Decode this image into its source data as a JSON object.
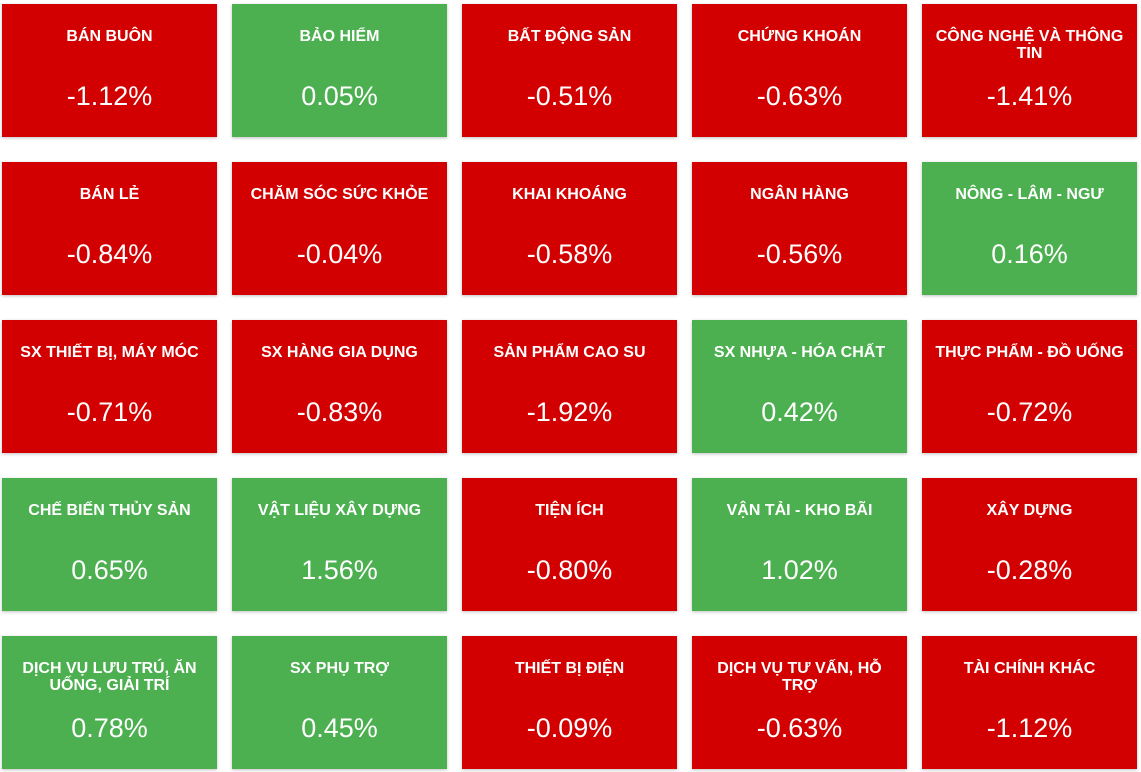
{
  "colors": {
    "down": "#d20000",
    "up": "#4caf50",
    "text": "#ffffff"
  },
  "sectors": [
    {
      "name": "BÁN BUÔN",
      "change": "-1.12%",
      "trend": "down"
    },
    {
      "name": "BẢO HIỂM",
      "change": "0.05%",
      "trend": "up"
    },
    {
      "name": "BẤT ĐỘNG SẢN",
      "change": "-0.51%",
      "trend": "down"
    },
    {
      "name": "CHỨNG KHOÁN",
      "change": "-0.63%",
      "trend": "down"
    },
    {
      "name": "CÔNG NGHỆ VÀ THÔNG TIN",
      "change": "-1.41%",
      "trend": "down"
    },
    {
      "name": "BÁN LẺ",
      "change": "-0.84%",
      "trend": "down"
    },
    {
      "name": "CHĂM SÓC SỨC KHỎE",
      "change": "-0.04%",
      "trend": "down"
    },
    {
      "name": "KHAI KHOÁNG",
      "change": "-0.58%",
      "trend": "down"
    },
    {
      "name": "NGÂN HÀNG",
      "change": "-0.56%",
      "trend": "down"
    },
    {
      "name": "NÔNG - LÂM - NGƯ",
      "change": "0.16%",
      "trend": "up"
    },
    {
      "name": "SX THIẾT BỊ, MÁY MÓC",
      "change": "-0.71%",
      "trend": "down"
    },
    {
      "name": "SX HÀNG GIA DỤNG",
      "change": "-0.83%",
      "trend": "down"
    },
    {
      "name": "SẢN PHẨM CAO SU",
      "change": "-1.92%",
      "trend": "down"
    },
    {
      "name": "SX NHỰA - HÓA CHẤT",
      "change": "0.42%",
      "trend": "up"
    },
    {
      "name": "THỰC PHẨM - ĐỒ UỐNG",
      "change": "-0.72%",
      "trend": "down"
    },
    {
      "name": "CHẾ BIẾN THỦY SẢN",
      "change": "0.65%",
      "trend": "up"
    },
    {
      "name": "VẬT LIỆU XÂY DỰNG",
      "change": "1.56%",
      "trend": "up"
    },
    {
      "name": "TIỆN ÍCH",
      "change": "-0.80%",
      "trend": "down"
    },
    {
      "name": "VẬN TẢI - KHO BÃI",
      "change": "1.02%",
      "trend": "up"
    },
    {
      "name": "XÂY DỰNG",
      "change": "-0.28%",
      "trend": "down"
    },
    {
      "name": "DỊCH VỤ LƯU TRÚ, ĂN UỐNG, GIẢI TRÍ",
      "change": "0.78%",
      "trend": "up"
    },
    {
      "name": "SX PHỤ TRỢ",
      "change": "0.45%",
      "trend": "up"
    },
    {
      "name": "THIẾT BỊ ĐIỆN",
      "change": "-0.09%",
      "trend": "down"
    },
    {
      "name": "DỊCH VỤ TƯ VẤN, HỖ TRỢ",
      "change": "-0.63%",
      "trend": "down"
    },
    {
      "name": "TÀI CHÍNH KHÁC",
      "change": "-1.12%",
      "trend": "down"
    }
  ]
}
